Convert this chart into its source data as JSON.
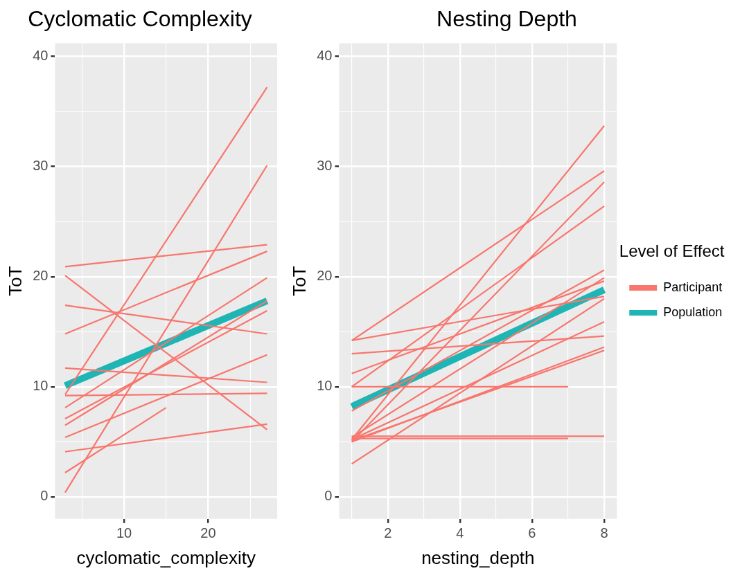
{
  "chart_data": [
    {
      "type": "line",
      "title": "Cyclomatic Complexity",
      "xlabel": "cyclomatic_complexity",
      "ylabel": "ToT",
      "xlim": [
        1.8,
        28.2
      ],
      "ylim": [
        -2,
        41.2
      ],
      "xticks": [
        {
          "value": 5,
          "label": null
        },
        10,
        {
          "value": 15,
          "label": null
        },
        20,
        {
          "value": 25,
          "label": null
        }
      ],
      "yticks": [
        0,
        {
          "value": 5,
          "label": null
        },
        10,
        {
          "value": 15,
          "label": null
        },
        20,
        {
          "value": 25,
          "label": null
        },
        30,
        {
          "value": 35,
          "label": null
        },
        40
      ],
      "grid": true,
      "legend": false,
      "series": [
        {
          "color": "#f8766d",
          "x": [
            3,
            27
          ],
          "values": [
            20.9,
            22.9
          ]
        },
        {
          "color": "#f8766d",
          "x": [
            3,
            27
          ],
          "values": [
            20.1,
            6.1
          ]
        },
        {
          "color": "#f8766d",
          "x": [
            3,
            27
          ],
          "values": [
            17.4,
            14.8
          ]
        },
        {
          "color": "#f8766d",
          "x": [
            3,
            27
          ],
          "values": [
            14.8,
            22.3
          ]
        },
        {
          "color": "#f8766d",
          "x": [
            3,
            27
          ],
          "values": [
            11.7,
            10.4
          ]
        },
        {
          "color": "#f8766d",
          "x": [
            3,
            27
          ],
          "values": [
            9.3,
            37.2
          ]
        },
        {
          "color": "#f8766d",
          "x": [
            3,
            27
          ],
          "values": [
            9.2,
            9.4
          ]
        },
        {
          "color": "#f8766d",
          "x": [
            3,
            27
          ],
          "values": [
            0.4,
            30.1
          ]
        },
        {
          "color": "#f8766d",
          "x": [
            3,
            27
          ],
          "values": [
            4.1,
            6.6
          ]
        },
        {
          "color": "#f8766d",
          "x": [
            3,
            15
          ],
          "values": [
            2.2,
            8.1
          ]
        },
        {
          "color": "#f8766d",
          "x": [
            3,
            27
          ],
          "values": [
            5.4,
            12.9
          ]
        },
        {
          "color": "#f8766d",
          "x": [
            3,
            27
          ],
          "values": [
            7.1,
            16.9
          ]
        },
        {
          "color": "#f8766d",
          "x": [
            3,
            27
          ],
          "values": [
            8.1,
            19.9
          ]
        },
        {
          "color": "#f8766d",
          "x": [
            3,
            27
          ],
          "values": [
            6.5,
            17.8
          ]
        },
        {
          "color": "#1fb5b5",
          "x": [
            3,
            27
          ],
          "values": [
            10.1,
            17.8
          ]
        }
      ]
    },
    {
      "type": "line",
      "title": "Nesting Depth",
      "xlabel": "nesting_depth",
      "ylabel": "ToT",
      "legend_title": "Level of Effect",
      "xlim": [
        0.65,
        8.35
      ],
      "ylim": [
        -2,
        41.2
      ],
      "xticks": [
        {
          "value": 1,
          "label": null
        },
        2,
        {
          "value": 3,
          "label": null
        },
        4,
        {
          "value": 5,
          "label": null
        },
        6,
        {
          "value": 7,
          "label": null
        },
        8
      ],
      "yticks": [
        0,
        {
          "value": 5,
          "label": null
        },
        10,
        {
          "value": 15,
          "label": null
        },
        20,
        {
          "value": 25,
          "label": null
        },
        30,
        {
          "value": 35,
          "label": null
        },
        40
      ],
      "grid": true,
      "legend": "right",
      "series": [
        {
          "name": "Participant",
          "color": "#f8766d",
          "x": [
            1,
            8
          ],
          "values": [
            14.2,
            29.6
          ]
        },
        {
          "color": "#f8766d",
          "x": [
            1,
            8
          ],
          "values": [
            14.2,
            18.2
          ]
        },
        {
          "color": "#f8766d",
          "x": [
            1,
            8
          ],
          "values": [
            13.0,
            14.6
          ]
        },
        {
          "color": "#f8766d",
          "x": [
            1,
            8
          ],
          "values": [
            11.2,
            19.6
          ]
        },
        {
          "color": "#f8766d",
          "x": [
            1,
            7
          ],
          "values": [
            10.0,
            10.0
          ]
        },
        {
          "color": "#f8766d",
          "x": [
            1,
            8
          ],
          "values": [
            10.0,
            26.4
          ]
        },
        {
          "color": "#f8766d",
          "x": [
            1,
            8
          ],
          "values": [
            7.8,
            20.6
          ]
        },
        {
          "color": "#f8766d",
          "x": [
            1,
            8
          ],
          "values": [
            5.5,
            5.5
          ]
        },
        {
          "color": "#f8766d",
          "x": [
            1,
            7
          ],
          "values": [
            5.3,
            5.3
          ]
        },
        {
          "color": "#f8766d",
          "x": [
            1,
            8
          ],
          "values": [
            5.2,
            33.7
          ]
        },
        {
          "color": "#f8766d",
          "x": [
            1,
            8
          ],
          "values": [
            5.0,
            28.6
          ]
        },
        {
          "color": "#f8766d",
          "x": [
            1,
            8
          ],
          "values": [
            5.4,
            19.9
          ]
        },
        {
          "color": "#f8766d",
          "x": [
            1,
            8
          ],
          "values": [
            5.2,
            15.9
          ]
        },
        {
          "color": "#f8766d",
          "x": [
            1,
            8
          ],
          "values": [
            5.0,
            13.6
          ]
        },
        {
          "color": "#f8766d",
          "x": [
            1,
            8
          ],
          "values": [
            3.0,
            18.0
          ]
        },
        {
          "color": "#f8766d",
          "x": [
            1,
            8
          ],
          "values": [
            5.1,
            13.3
          ]
        },
        {
          "name": "Population",
          "color": "#1fb5b5",
          "x": [
            1,
            8
          ],
          "values": [
            8.2,
            18.8
          ]
        }
      ]
    }
  ]
}
